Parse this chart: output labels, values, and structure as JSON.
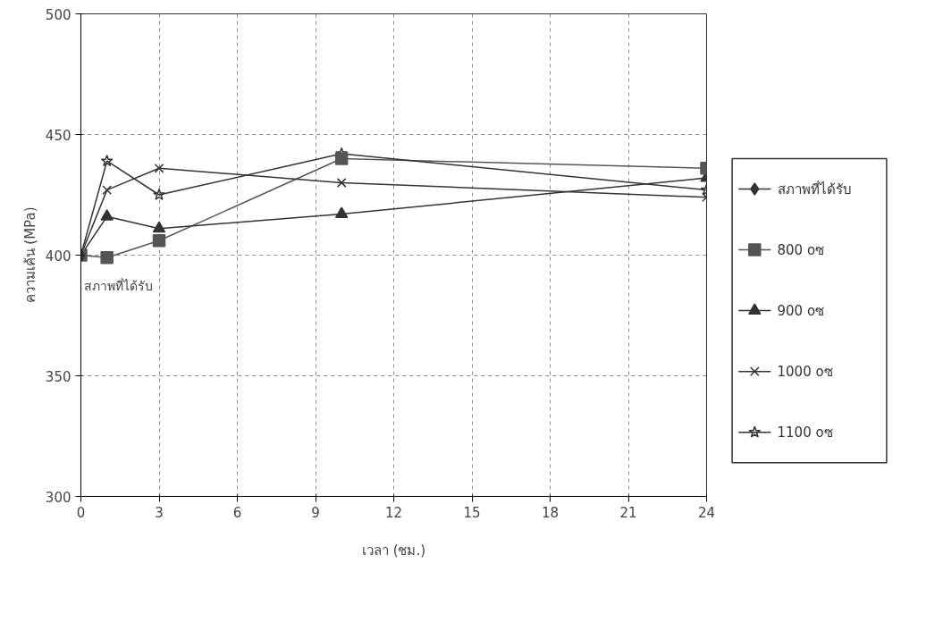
{
  "chart_data": {
    "type": "line",
    "xlabel": "เวลา (ชม.)",
    "ylabel": "ความเค้น (MPa)",
    "xlim": [
      0,
      24
    ],
    "ylim": [
      300,
      500
    ],
    "xticks": [
      0,
      3,
      6,
      9,
      12,
      15,
      18,
      21,
      24
    ],
    "yticks": [
      300,
      350,
      400,
      450,
      500
    ],
    "grid": true,
    "legend": "right",
    "series": [
      {
        "name": "สภาพที่ได้รับ",
        "color": "#333333",
        "marker": "diamond",
        "x": [
          0
        ],
        "values": [
          400
        ]
      },
      {
        "name": "800 oซ",
        "color": "#555555",
        "marker": "square",
        "x": [
          0,
          1,
          3,
          10,
          24
        ],
        "values": [
          400,
          399,
          406,
          440,
          436
        ]
      },
      {
        "name": "900 oซ",
        "color": "#333333",
        "marker": "triangle",
        "x": [
          0,
          1,
          3,
          10,
          24
        ],
        "values": [
          400,
          416,
          411,
          417,
          432
        ]
      },
      {
        "name": "1000 oซ",
        "color": "#333333",
        "marker": "cross",
        "x": [
          0,
          1,
          3,
          10,
          24
        ],
        "values": [
          400,
          427,
          436,
          430,
          424
        ]
      },
      {
        "name": "1100 oซ",
        "color": "#333333",
        "marker": "star",
        "x": [
          0,
          1,
          3,
          10,
          24
        ],
        "values": [
          400,
          439,
          425,
          442,
          427
        ]
      }
    ],
    "annotations": [
      {
        "text": "สภาพที่ได้รับ",
        "x": 0,
        "y": 400
      }
    ]
  }
}
